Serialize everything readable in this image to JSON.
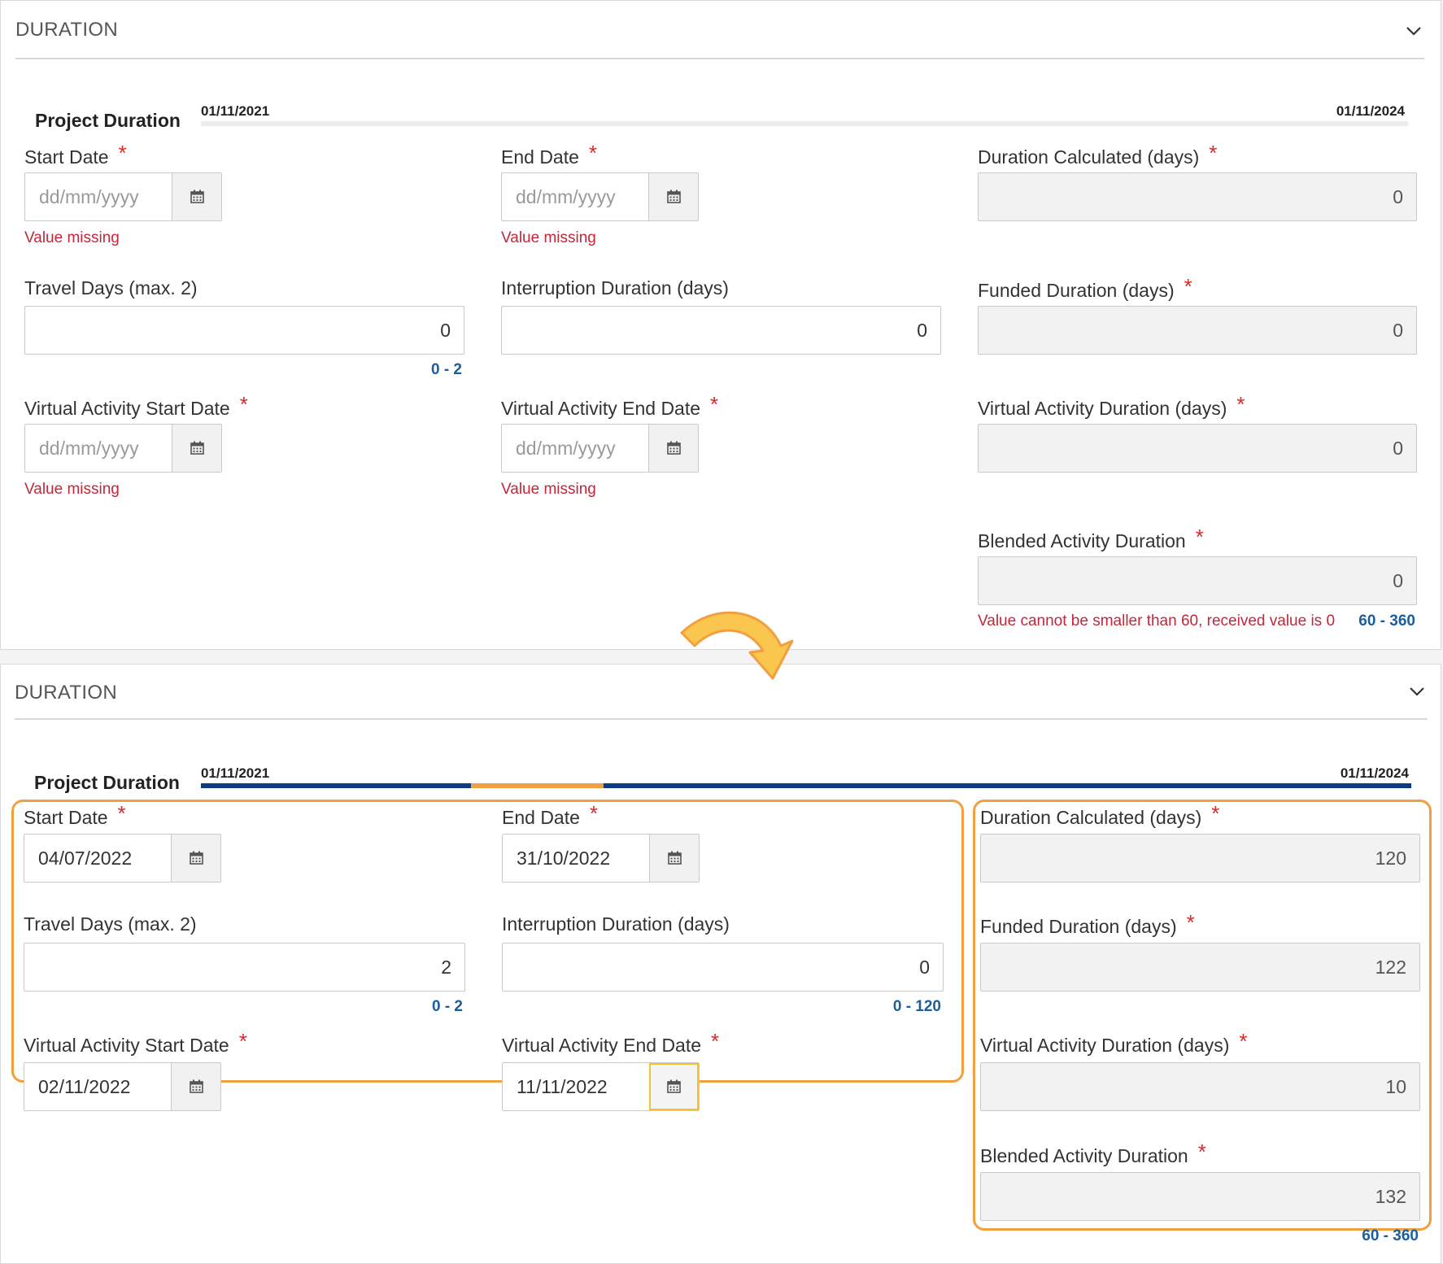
{
  "top": {
    "title": "DURATION",
    "project_duration": {
      "label": "Project Duration",
      "start": "01/11/2021",
      "end": "01/11/2024"
    },
    "start_date": {
      "label": "Start Date",
      "required": "*",
      "placeholder": "dd/mm/yyyy",
      "error": "Value missing"
    },
    "end_date": {
      "label": "End Date",
      "required": "*",
      "placeholder": "dd/mm/yyyy",
      "error": "Value missing"
    },
    "duration_calculated": {
      "label": "Duration Calculated (days)",
      "required": "*",
      "value": "0"
    },
    "travel_days": {
      "label": "Travel Days (max. 2)",
      "value": "0",
      "range": "0 - 2"
    },
    "interruption": {
      "label": "Interruption Duration (days)",
      "value": "0"
    },
    "funded_duration": {
      "label": "Funded Duration (days)",
      "required": "*",
      "value": "0"
    },
    "va_start": {
      "label": "Virtual Activity Start Date",
      "required": "*",
      "placeholder": "dd/mm/yyyy",
      "error": "Value missing"
    },
    "va_end": {
      "label": "Virtual Activity End Date",
      "required": "*",
      "placeholder": "dd/mm/yyyy",
      "error": "Value missing"
    },
    "va_duration": {
      "label": "Virtual Activity Duration (days)",
      "required": "*",
      "value": "0"
    },
    "blended": {
      "label": "Blended Activity Duration",
      "required": "*",
      "value": "0",
      "error": "Value cannot be smaller than 60, received value is 0",
      "range": "60 - 360"
    }
  },
  "bottom": {
    "title": "DURATION",
    "project_duration": {
      "label": "Project Duration",
      "start": "01/11/2021",
      "end": "01/11/2024"
    },
    "start_date": {
      "label": "Start Date",
      "required": "*",
      "value": "04/07/2022"
    },
    "end_date": {
      "label": "End Date",
      "required": "*",
      "value": "31/10/2022"
    },
    "duration_calculated": {
      "label": "Duration Calculated (days)",
      "required": "*",
      "value": "120"
    },
    "travel_days": {
      "label": "Travel Days (max. 2)",
      "value": "2",
      "range": "0 - 2"
    },
    "interruption": {
      "label": "Interruption Duration (days)",
      "value": "0",
      "range": "0 - 120"
    },
    "funded_duration": {
      "label": "Funded Duration (days)",
      "required": "*",
      "value": "122"
    },
    "va_start": {
      "label": "Virtual Activity Start Date",
      "required": "*",
      "value": "02/11/2022"
    },
    "va_end": {
      "label": "Virtual Activity End Date",
      "required": "*",
      "value": "11/11/2022"
    },
    "va_duration": {
      "label": "Virtual Activity Duration (days)",
      "required": "*",
      "value": "10"
    },
    "blended": {
      "label": "Blended Activity Duration",
      "required": "*",
      "value": "132",
      "range": "60 - 360"
    }
  },
  "colors": {
    "required": "#d62b2b",
    "error": "#c4263a",
    "range": "#1b5e9e",
    "timeline_bar": "#0d3a80",
    "timeline_highlight": "#f0a040",
    "highlight_box": "#f0a040",
    "focus": "#f2c230"
  },
  "icons": {
    "calendar": "calendar-icon",
    "collapse": "chevron-down-icon",
    "transition": "curved-arrow-icon"
  }
}
